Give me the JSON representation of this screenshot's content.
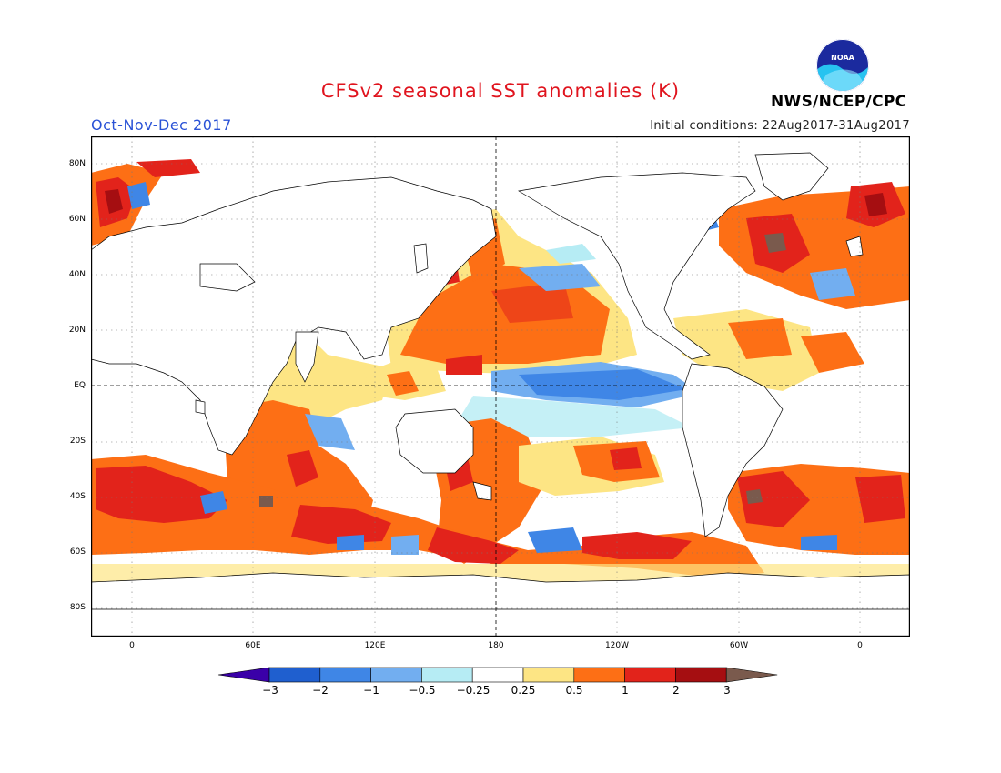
{
  "header": {
    "title": "CFSv2 seasonal SST anomalies (K)",
    "period": "Oct-Nov-Dec 2017",
    "initial_conditions": "Initial conditions: 22Aug2017-31Aug2017",
    "agency": "NWS/NCEP/CPC",
    "logo_text": "NOAA"
  },
  "map": {
    "lat_labels": [
      "80N",
      "60N",
      "40N",
      "20N",
      "EQ",
      "20S",
      "40S",
      "60S",
      "80S"
    ],
    "lon_labels": [
      "0",
      "60E",
      "120E",
      "180",
      "120W",
      "60W",
      "0"
    ]
  },
  "colorbar": {
    "labels": [
      "−3",
      "−2",
      "−1",
      "−0.5",
      "−0.25",
      "0.25",
      "0.5",
      "1",
      "2",
      "3"
    ],
    "colors": [
      "#3a00a8",
      "#1f5fcf",
      "#3f86e6",
      "#72aef0",
      "#b6ecf4",
      "#ffffff",
      "#fde584",
      "#fd6f15",
      "#e2231b",
      "#a50e11",
      "#7a5a4d"
    ]
  }
}
